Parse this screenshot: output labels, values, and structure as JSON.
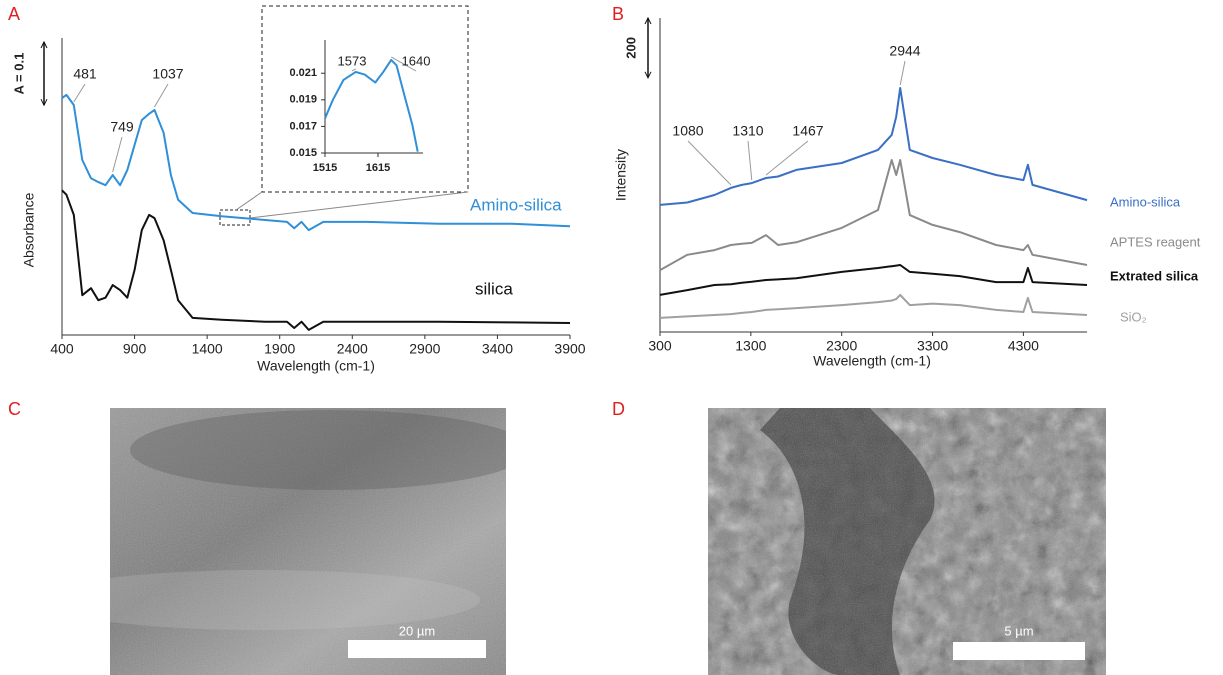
{
  "chart_data": [
    {
      "type": "line",
      "panel": "A",
      "xlabel": "Wavelength (cm-1)",
      "ylabel": "Absorbance",
      "scale_bar": {
        "value": 0.1,
        "label": "A = 0.1"
      },
      "x": [
        400,
        430,
        481,
        540,
        600,
        650,
        700,
        749,
        800,
        850,
        900,
        950,
        1000,
        1037,
        1100,
        1150,
        1200,
        1300,
        1500,
        1800,
        1950,
        2000,
        2050,
        2100,
        2200,
        2500,
        3000,
        3500,
        3900
      ],
      "xlim": [
        400,
        3900
      ],
      "xticks": [
        400,
        900,
        1400,
        1900,
        2400,
        2900,
        3400,
        3900
      ],
      "ylim": [
        0,
        0.47
      ],
      "series": [
        {
          "name": "Amino-silica",
          "color": "#2f8fd8",
          "values": [
            0.375,
            0.38,
            0.364,
            0.277,
            0.248,
            0.242,
            0.237,
            0.253,
            0.237,
            0.261,
            0.301,
            0.34,
            0.35,
            0.356,
            0.32,
            0.253,
            0.214,
            0.193,
            0.188,
            0.182,
            0.179,
            0.169,
            0.179,
            0.166,
            0.179,
            0.179,
            0.176,
            0.176,
            0.172
          ]
        },
        {
          "name": "silica",
          "color": "#111111",
          "values": [
            0.229,
            0.222,
            0.19,
            0.063,
            0.074,
            0.055,
            0.059,
            0.079,
            0.071,
            0.059,
            0.103,
            0.166,
            0.19,
            0.185,
            0.15,
            0.103,
            0.055,
            0.027,
            0.024,
            0.021,
            0.021,
            0.011,
            0.021,
            0.008,
            0.021,
            0.021,
            0.021,
            0.02,
            0.019
          ]
        }
      ],
      "annotations": [
        481,
        749,
        1037
      ]
    },
    {
      "type": "line",
      "x": [
        1515,
        1530,
        1550,
        1573,
        1590,
        1610,
        1625,
        1640,
        1650,
        1665,
        1680,
        1690
      ],
      "values": [
        0.0176,
        0.019,
        0.0205,
        0.0211,
        0.0209,
        0.0203,
        0.0211,
        0.022,
        0.0216,
        0.0193,
        0.0171,
        0.0151
      ],
      "color": "#2f8fd8",
      "xlim": [
        1515,
        1700
      ],
      "xticks": [
        1515,
        1615
      ],
      "ylim": [
        0.015,
        0.0235
      ],
      "yticks": [
        0.015,
        0.017,
        0.019,
        0.021
      ],
      "annotations": [
        1573,
        1640
      ]
    },
    {
      "type": "line",
      "panel": "B",
      "xlabel": "Wavelength (cm-1)",
      "ylabel": "Intensity",
      "scale_bar": 200,
      "x": [
        300,
        600,
        900,
        1080,
        1200,
        1310,
        1467,
        1600,
        1800,
        2300,
        2700,
        2850,
        2900,
        2944,
        3050,
        3300,
        3600,
        4000,
        4300,
        4350,
        4400,
        5000
      ],
      "xlim": [
        300,
        5000
      ],
      "xticks": [
        300,
        1300,
        2300,
        3300,
        4300
      ],
      "ylim": [
        0,
        1050
      ],
      "series": [
        {
          "name": "Amino-silica",
          "color": "#3a6fc4",
          "values": [
            425,
            433,
            458,
            482,
            492,
            498,
            515,
            520,
            542,
            565,
            609,
            659,
            720,
            816,
            609,
            582,
            559,
            525,
            508,
            559,
            492,
            441
          ]
        },
        {
          "name": "APTES reagent",
          "color": "#8a8a8a",
          "values": [
            207,
            258,
            274,
            291,
            295,
            298,
            324,
            291,
            300,
            348,
            408,
            575,
            525,
            575,
            391,
            358,
            334,
            291,
            274,
            291,
            258,
            224
          ]
        },
        {
          "name": "Extrated silica",
          "color": "#111111",
          "values": [
            124,
            140,
            157,
            160,
            165,
            168,
            174,
            176,
            180,
            201,
            214,
            220,
            222,
            224,
            201,
            195,
            187,
            167,
            167,
            214,
            167,
            157
          ]
        },
        {
          "name": "SiO₂",
          "color": "#a0a0a0",
          "values": [
            47,
            52,
            57,
            60,
            64,
            67,
            74,
            76,
            80,
            90,
            100,
            105,
            110,
            124,
            90,
            95,
            90,
            74,
            67,
            114,
            67,
            57
          ]
        }
      ],
      "annotations": [
        1080,
        1310,
        1467,
        2944
      ]
    }
  ],
  "images": [
    {
      "panel": "C",
      "scale_bar": "20 µm"
    },
    {
      "panel": "D",
      "scale_bar": "5 µm"
    }
  ]
}
